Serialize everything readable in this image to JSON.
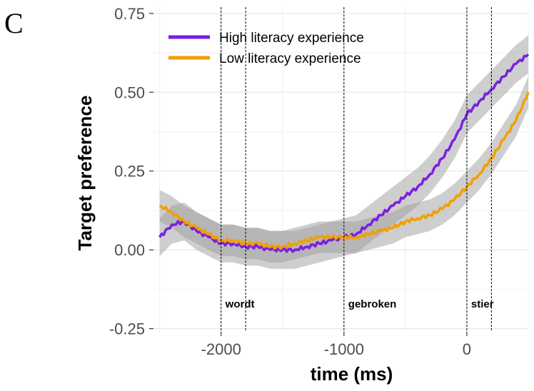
{
  "panel_label": "C",
  "chart_data": {
    "type": "line",
    "title": "",
    "xlabel": "time (ms)",
    "ylabel": "Target preference",
    "xlim": [
      -2550,
      500
    ],
    "ylim": [
      -0.26,
      0.77
    ],
    "x_ticks": [
      -2000,
      -1000,
      0
    ],
    "x_tick_labels": [
      "-2000",
      "-1000",
      "0"
    ],
    "y_ticks": [
      -0.25,
      0.0,
      0.25,
      0.5,
      0.75
    ],
    "y_tick_labels": [
      "-0.25",
      "0.00",
      "0.25",
      "0.50",
      "0.75"
    ],
    "grid": true,
    "legend_position": "top-left",
    "ribbon_color": "#9e9e9e",
    "series": [
      {
        "name": "High literacy experience",
        "color": "#7b1fe0",
        "x": [
          -2500,
          -2400,
          -2300,
          -2200,
          -2100,
          -2000,
          -1900,
          -1800,
          -1700,
          -1600,
          -1500,
          -1400,
          -1300,
          -1200,
          -1100,
          -1000,
          -900,
          -800,
          -700,
          -600,
          -500,
          -400,
          -300,
          -200,
          -100,
          0,
          100,
          200,
          300,
          400,
          500
        ],
        "y": [
          0.04,
          0.08,
          0.09,
          0.06,
          0.04,
          0.02,
          0.02,
          0.01,
          0.01,
          0.0,
          0.0,
          0.0,
          0.01,
          0.02,
          0.03,
          0.04,
          0.05,
          0.08,
          0.11,
          0.14,
          0.17,
          0.2,
          0.24,
          0.29,
          0.35,
          0.43,
          0.47,
          0.51,
          0.55,
          0.59,
          0.62
        ],
        "ci_half_width": 0.06
      },
      {
        "name": "Low literacy experience",
        "color": "#f0a000",
        "x": [
          -2500,
          -2400,
          -2300,
          -2200,
          -2100,
          -2000,
          -1900,
          -1800,
          -1700,
          -1600,
          -1500,
          -1400,
          -1300,
          -1200,
          -1100,
          -1000,
          -900,
          -800,
          -700,
          -600,
          -500,
          -400,
          -300,
          -200,
          -100,
          0,
          100,
          200,
          300,
          400,
          500
        ],
        "y": [
          0.14,
          0.12,
          0.09,
          0.07,
          0.05,
          0.03,
          0.03,
          0.02,
          0.02,
          0.01,
          0.01,
          0.02,
          0.03,
          0.04,
          0.04,
          0.04,
          0.04,
          0.05,
          0.06,
          0.07,
          0.09,
          0.1,
          0.11,
          0.13,
          0.16,
          0.2,
          0.24,
          0.29,
          0.35,
          0.41,
          0.5
        ],
        "ci_half_width": 0.05
      }
    ],
    "vlines": [
      {
        "x": -2000,
        "label": "wordt"
      },
      {
        "x": -1800,
        "label": ""
      },
      {
        "x": -1000,
        "label": "gebroken"
      },
      {
        "x": 0,
        "label": "stier"
      },
      {
        "x": 200,
        "label": ""
      }
    ],
    "annotations_y": -0.17
  }
}
